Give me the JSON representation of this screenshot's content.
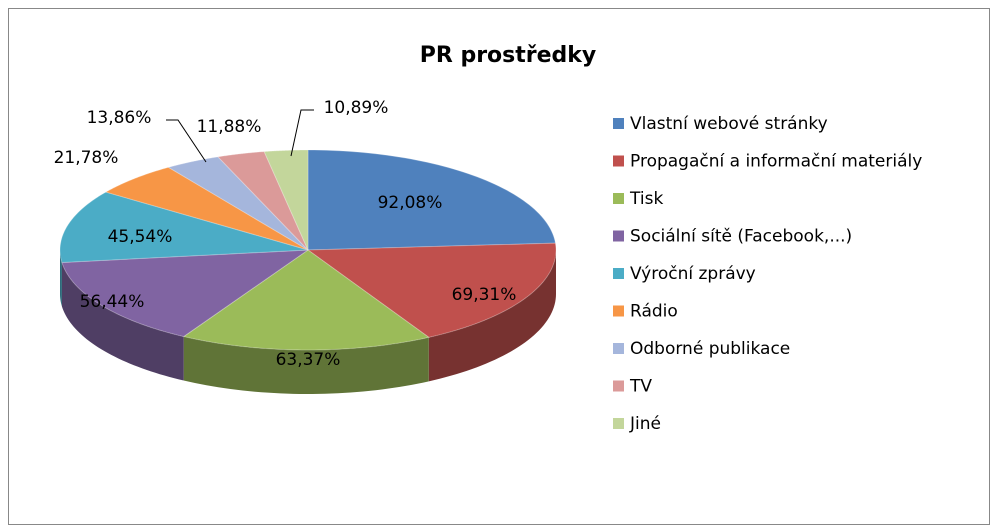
{
  "chart_data": {
    "type": "pie",
    "title": "PR prostředky",
    "categories": [
      "Vlastní webové stránky",
      "Propagační a informační materiály",
      "Tisk",
      "Sociální sítě (Facebook,...)",
      "Výroční zprávy",
      "Rádio",
      "Odborné publikace",
      "TV",
      "Jiné"
    ],
    "values": [
      92.08,
      69.31,
      63.37,
      56.44,
      45.54,
      21.78,
      13.86,
      11.88,
      10.89
    ],
    "value_labels": [
      "92,08%",
      "69,31%",
      "63,37%",
      "56,44%",
      "45,54%",
      "21,78%",
      "13,86%",
      "11,88%",
      "10,89%"
    ],
    "colors": [
      "#4f81bd",
      "#c0504d",
      "#9bbb59",
      "#8064a2",
      "#4bacc6",
      "#f79646",
      "#a5b6dc",
      "#db9a99",
      "#c3d69b"
    ],
    "legend": "right"
  }
}
